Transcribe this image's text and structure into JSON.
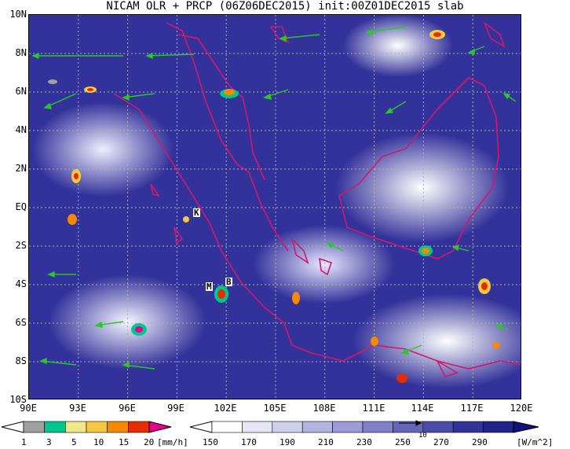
{
  "title": "NICAM OLR + PRCP (06Z06DEC2015) init:00Z01DEC2015 slab",
  "map": {
    "lat_labels": [
      "10N",
      "8N",
      "6N",
      "4N",
      "2N",
      "EQ",
      "2S",
      "4S",
      "6S",
      "8S",
      "10S"
    ],
    "lon_labels": [
      "90E",
      "93E",
      "96E",
      "99E",
      "102E",
      "105E",
      "108E",
      "111E",
      "114E",
      "117E",
      "120E"
    ],
    "place_labels": [
      "K",
      "M",
      "B"
    ]
  },
  "precip_colorbar": {
    "unit": "[mm/h]",
    "ticks": [
      "1",
      "3",
      "5",
      "10",
      "15",
      "20"
    ],
    "colors": [
      "#a0a0a0",
      "#00c88c",
      "#f0e68c",
      "#f5c842",
      "#f58a00",
      "#e62d00",
      "#e6008c"
    ]
  },
  "olr_colorbar": {
    "unit": "[W/m^2]",
    "ticks": [
      "150",
      "170",
      "190",
      "210",
      "230",
      "250",
      "270",
      "290"
    ],
    "vector_ref": "10",
    "colors": [
      "#ffffff",
      "#e6e6f5",
      "#cfcfeb",
      "#b4b4e0",
      "#9b9bd6",
      "#8080c8",
      "#6464b9",
      "#4b4baa",
      "#34329a",
      "#23218a",
      "#14127a"
    ]
  }
}
